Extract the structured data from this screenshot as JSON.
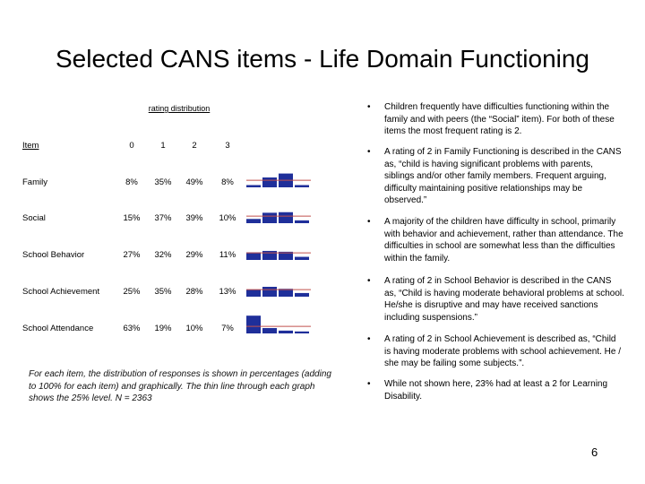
{
  "title": "Selected CANS items - Life Domain Functioning",
  "table": {
    "group_header": "rating distribution",
    "item_header": "Item",
    "rating_headers": [
      "0",
      "1",
      "2",
      "3"
    ],
    "rows": [
      {
        "item": "Family",
        "pcts": [
          "8%",
          "35%",
          "49%",
          "8%"
        ],
        "values": [
          8,
          35,
          49,
          8
        ]
      },
      {
        "item": "Social",
        "pcts": [
          "15%",
          "37%",
          "39%",
          "10%"
        ],
        "values": [
          15,
          37,
          39,
          10
        ]
      },
      {
        "item": "School Behavior",
        "pcts": [
          "27%",
          "32%",
          "29%",
          "11%"
        ],
        "values": [
          27,
          32,
          29,
          11
        ]
      },
      {
        "item": "School Achievement",
        "pcts": [
          "25%",
          "35%",
          "28%",
          "13%"
        ],
        "values": [
          25,
          35,
          28,
          13
        ]
      },
      {
        "item": "School Attendance",
        "pcts": [
          "63%",
          "19%",
          "10%",
          "7%"
        ],
        "values": [
          63,
          19,
          10,
          7
        ]
      }
    ],
    "reference_level": 25
  },
  "caption": "For each item, the distribution of responses is shown in percentages (adding to 100% for each item) and graphically. The thin line through each graph shows the 25% level. N = 2363",
  "bullets": [
    "Children frequently have difficulties functioning within the family and with peers (the “Social” item). For both of these items the most frequent rating is 2.",
    "A rating of 2 in Family Functioning is described in the CANS as, “child is having significant problems with parents, siblings and/or other family members. Frequent arguing, difficulty maintaining positive relationships may be observed.”",
    "A majority of the children have difficulty in school, primarily with behavior and achievement, rather than attendance. The difficulties in school are somewhat less than the difficulties within the family.",
    "A rating of 2 in School Behavior is described in the CANS as, “Child is having moderate behavioral problems at school. He/she is disruptive and may have received sanctions including suspensions.”",
    "A rating of 2 in School Achievement is described as, “Child is having moderate problems with school achievement. He / she may be failing some subjects.”.",
    "While not shown here, 23% had at least a 2 for Learning Disability."
  ],
  "bullet_symbol": "•",
  "page_number": "6",
  "colors": {
    "bar": "#1f2f9a",
    "reference_line": "#c0504d"
  }
}
